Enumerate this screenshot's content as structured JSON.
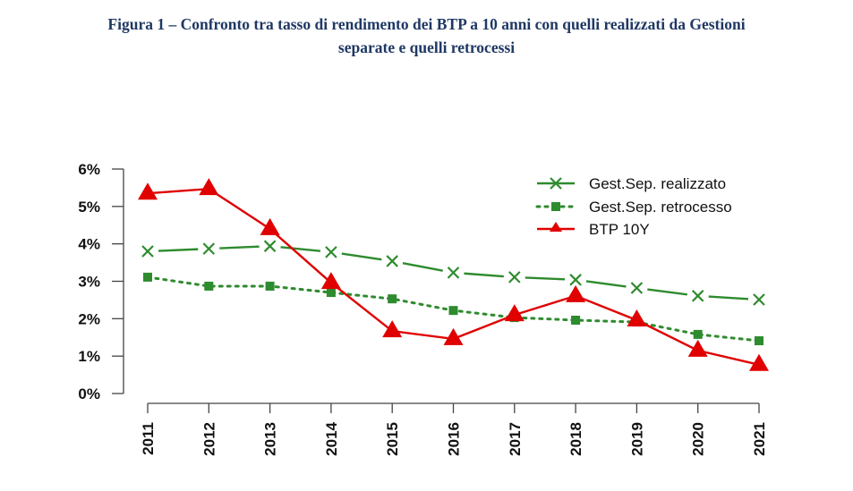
{
  "figure": {
    "title_line1": "Figura 1 – Confronto tra tasso di rendimento dei BTP a 10 anni con quelli realizzati da Gestioni",
    "title_line2": "separate e quelli retrocessi"
  },
  "chart_data": {
    "type": "line",
    "title": "Figura 1 – Confronto tra tasso di rendimento dei BTP a 10 anni con quelli realizzati da Gestioni separate e quelli retrocessi",
    "xlabel": "",
    "ylabel": "",
    "x": [
      "2011",
      "2012",
      "2013",
      "2014",
      "2015",
      "2016",
      "2017",
      "2018",
      "2019",
      "2020",
      "2021"
    ],
    "ylim": [
      0,
      6
    ],
    "yticks": [
      0,
      1,
      2,
      3,
      4,
      5,
      6
    ],
    "ytick_labels": [
      "0%",
      "1%",
      "2%",
      "3%",
      "4%",
      "5%",
      "6%"
    ],
    "grid": false,
    "legend_position": "top-right",
    "series": [
      {
        "name": "Gest.Sep. realizzato",
        "color": "#2e8b2e",
        "style": "solid",
        "marker": "x",
        "values": [
          3.8,
          3.87,
          3.94,
          3.78,
          3.54,
          3.23,
          3.11,
          3.04,
          2.82,
          2.61,
          2.51
        ]
      },
      {
        "name": "Gest.Sep. retrocesso",
        "color": "#2e8b2e",
        "style": "dotted",
        "marker": "square",
        "values": [
          3.11,
          2.87,
          2.87,
          2.7,
          2.53,
          2.22,
          2.03,
          1.96,
          1.91,
          1.58,
          1.41
        ]
      },
      {
        "name": "BTP 10Y",
        "color": "#e00000",
        "style": "solid",
        "marker": "triangle",
        "values": [
          5.35,
          5.47,
          4.4,
          2.96,
          1.67,
          1.46,
          2.1,
          2.61,
          1.96,
          1.15,
          0.77
        ]
      }
    ]
  }
}
